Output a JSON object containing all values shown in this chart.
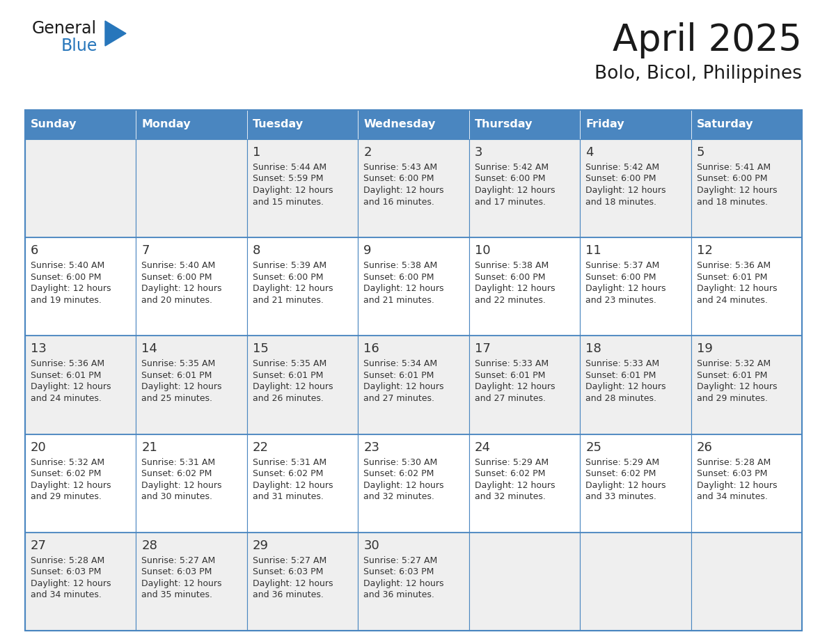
{
  "title": "April 2025",
  "subtitle": "Bolo, Bicol, Philippines",
  "days_of_week": [
    "Sunday",
    "Monday",
    "Tuesday",
    "Wednesday",
    "Thursday",
    "Friday",
    "Saturday"
  ],
  "header_bg": "#4a86c0",
  "header_fg": "#FFFFFF",
  "cell_bg_light": "#efefef",
  "cell_bg_white": "#FFFFFF",
  "grid_color": "#4a86c0",
  "text_color": "#333333",
  "title_color": "#1a1a1a",
  "logo_general_color": "#1a1a1a",
  "logo_blue_color": "#2776bb",
  "logo_triangle_color": "#2776bb",
  "cal_data": [
    [
      {
        "day": "",
        "sunrise": "",
        "sunset": "",
        "daylight_min": ""
      },
      {
        "day": "",
        "sunrise": "",
        "sunset": "",
        "daylight_min": ""
      },
      {
        "day": "1",
        "sunrise": "5:44 AM",
        "sunset": "5:59 PM",
        "daylight_min": "15"
      },
      {
        "day": "2",
        "sunrise": "5:43 AM",
        "sunset": "6:00 PM",
        "daylight_min": "16"
      },
      {
        "day": "3",
        "sunrise": "5:42 AM",
        "sunset": "6:00 PM",
        "daylight_min": "17"
      },
      {
        "day": "4",
        "sunrise": "5:42 AM",
        "sunset": "6:00 PM",
        "daylight_min": "18"
      },
      {
        "day": "5",
        "sunrise": "5:41 AM",
        "sunset": "6:00 PM",
        "daylight_min": "18"
      }
    ],
    [
      {
        "day": "6",
        "sunrise": "5:40 AM",
        "sunset": "6:00 PM",
        "daylight_min": "19"
      },
      {
        "day": "7",
        "sunrise": "5:40 AM",
        "sunset": "6:00 PM",
        "daylight_min": "20"
      },
      {
        "day": "8",
        "sunrise": "5:39 AM",
        "sunset": "6:00 PM",
        "daylight_min": "21"
      },
      {
        "day": "9",
        "sunrise": "5:38 AM",
        "sunset": "6:00 PM",
        "daylight_min": "21"
      },
      {
        "day": "10",
        "sunrise": "5:38 AM",
        "sunset": "6:00 PM",
        "daylight_min": "22"
      },
      {
        "day": "11",
        "sunrise": "5:37 AM",
        "sunset": "6:00 PM",
        "daylight_min": "23"
      },
      {
        "day": "12",
        "sunrise": "5:36 AM",
        "sunset": "6:01 PM",
        "daylight_min": "24"
      }
    ],
    [
      {
        "day": "13",
        "sunrise": "5:36 AM",
        "sunset": "6:01 PM",
        "daylight_min": "24"
      },
      {
        "day": "14",
        "sunrise": "5:35 AM",
        "sunset": "6:01 PM",
        "daylight_min": "25"
      },
      {
        "day": "15",
        "sunrise": "5:35 AM",
        "sunset": "6:01 PM",
        "daylight_min": "26"
      },
      {
        "day": "16",
        "sunrise": "5:34 AM",
        "sunset": "6:01 PM",
        "daylight_min": "27"
      },
      {
        "day": "17",
        "sunrise": "5:33 AM",
        "sunset": "6:01 PM",
        "daylight_min": "27"
      },
      {
        "day": "18",
        "sunrise": "5:33 AM",
        "sunset": "6:01 PM",
        "daylight_min": "28"
      },
      {
        "day": "19",
        "sunrise": "5:32 AM",
        "sunset": "6:01 PM",
        "daylight_min": "29"
      }
    ],
    [
      {
        "day": "20",
        "sunrise": "5:32 AM",
        "sunset": "6:02 PM",
        "daylight_min": "29"
      },
      {
        "day": "21",
        "sunrise": "5:31 AM",
        "sunset": "6:02 PM",
        "daylight_min": "30"
      },
      {
        "day": "22",
        "sunrise": "5:31 AM",
        "sunset": "6:02 PM",
        "daylight_min": "31"
      },
      {
        "day": "23",
        "sunrise": "5:30 AM",
        "sunset": "6:02 PM",
        "daylight_min": "32"
      },
      {
        "day": "24",
        "sunrise": "5:29 AM",
        "sunset": "6:02 PM",
        "daylight_min": "32"
      },
      {
        "day": "25",
        "sunrise": "5:29 AM",
        "sunset": "6:02 PM",
        "daylight_min": "33"
      },
      {
        "day": "26",
        "sunrise": "5:28 AM",
        "sunset": "6:03 PM",
        "daylight_min": "34"
      }
    ],
    [
      {
        "day": "27",
        "sunrise": "5:28 AM",
        "sunset": "6:03 PM",
        "daylight_min": "34"
      },
      {
        "day": "28",
        "sunrise": "5:27 AM",
        "sunset": "6:03 PM",
        "daylight_min": "35"
      },
      {
        "day": "29",
        "sunrise": "5:27 AM",
        "sunset": "6:03 PM",
        "daylight_min": "36"
      },
      {
        "day": "30",
        "sunrise": "5:27 AM",
        "sunset": "6:03 PM",
        "daylight_min": "36"
      },
      {
        "day": "",
        "sunrise": "",
        "sunset": "",
        "daylight_min": ""
      },
      {
        "day": "",
        "sunrise": "",
        "sunset": "",
        "daylight_min": ""
      },
      {
        "day": "",
        "sunrise": "",
        "sunset": "",
        "daylight_min": ""
      }
    ]
  ]
}
